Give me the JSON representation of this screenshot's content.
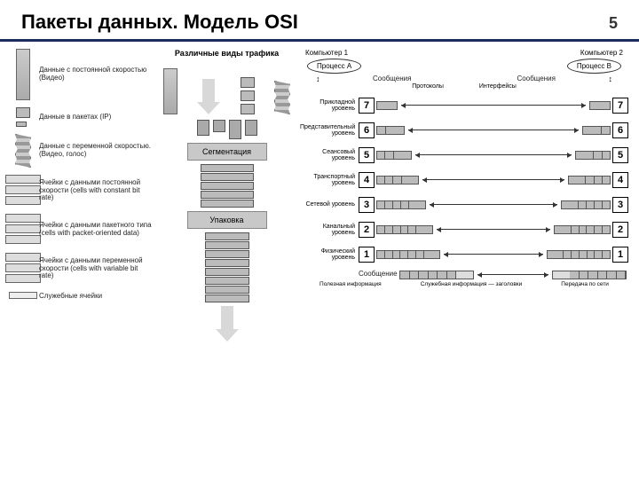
{
  "header": {
    "title": "Пакеты данных. Модель OSI",
    "page": "5"
  },
  "colors": {
    "rule": "#1a2b5c",
    "block": "#bbbbbb",
    "block_border": "#555555",
    "graybox": "#c8c8c8",
    "bg": "#ffffff"
  },
  "legend": {
    "title": "Различные виды трафика",
    "items": [
      {
        "key": "video_const",
        "text": "Данные с постоянной скоростью\n(Видео)"
      },
      {
        "key": "packets_ip",
        "text": "Данные в пакетах\n(IP)"
      },
      {
        "key": "var_rate",
        "text": "Данные с переменной скоростью.\n(Видео, голос)"
      },
      {
        "key": "cells_const",
        "text": "Ячейки с данными постоянной скорости\n(cells with constant bit rate)"
      },
      {
        "key": "cells_pkt",
        "text": "Ячейки с данными пакетного типа\n(cells with packet-oriented data)"
      },
      {
        "key": "cells_var",
        "text": "Ячейки с данными переменной скорости\n(cells with variable bit rate)"
      },
      {
        "key": "cells_svc",
        "text": "Служебные ячейки"
      }
    ]
  },
  "middle": {
    "segmentation": "Сегментация",
    "packing": "Упаковка"
  },
  "osi": {
    "comp1": "Компьютер 1",
    "comp2": "Компьютер 2",
    "procA": "Процесс А",
    "procB": "Процесс В",
    "msg": "Сообщения",
    "msg2": "Сообщения",
    "protocols": "Протоколы",
    "interfaces": "Интерфейсы",
    "msg_label": "Сообщение",
    "useful": "Полезная информация",
    "service": "Служебная информация — заголовки",
    "transfer": "Передача по сети",
    "layers": [
      {
        "n": 7,
        "name": "Прикладной уровень"
      },
      {
        "n": 6,
        "name": "Представительный уровень"
      },
      {
        "n": 5,
        "name": "Сеансовый уровень"
      },
      {
        "n": 4,
        "name": "Транспортный уровень"
      },
      {
        "n": 3,
        "name": "Сетевой уровень"
      },
      {
        "n": 2,
        "name": "Канальный уровень"
      },
      {
        "n": 1,
        "name": "Физический уровень"
      }
    ],
    "pdu_widths": [
      [
        18
      ],
      [
        8,
        18
      ],
      [
        8,
        8,
        18
      ],
      [
        8,
        8,
        8,
        18
      ],
      [
        8,
        8,
        8,
        8,
        18
      ],
      [
        8,
        8,
        8,
        8,
        8,
        18
      ],
      [
        8,
        8,
        8,
        8,
        8,
        8,
        18
      ]
    ]
  }
}
